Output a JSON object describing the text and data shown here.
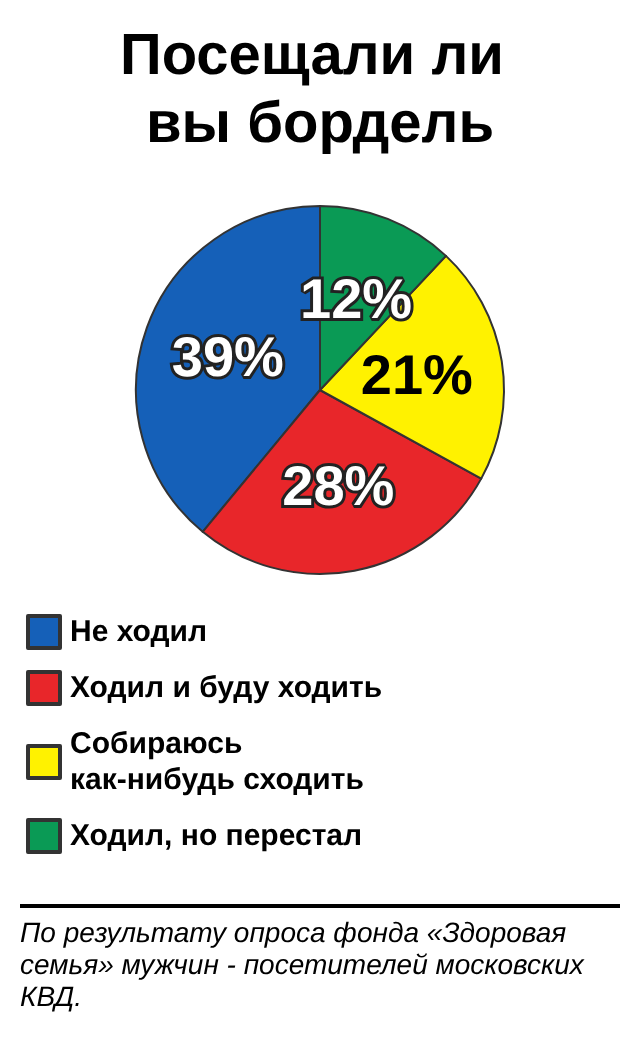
{
  "chart_data": {
    "type": "pie",
    "title": "Посещали ли вы бордель",
    "categories": [
      "Не ходил",
      "Ходил и буду ходить",
      "Собираюсь как-нибудь сходить",
      "Ходил, но перестал"
    ],
    "values": [
      39,
      28,
      21,
      12
    ],
    "colors": [
      "#1560b8",
      "#e8262a",
      "#fff200",
      "#0a9a55"
    ],
    "value_labels": [
      "39%",
      "28%",
      "21%",
      "12%"
    ],
    "legend": "bottom",
    "annotations": [
      "По результату опроса фонда «Здоровая семья» мужчин - посетителей московских КВД."
    ]
  }
}
